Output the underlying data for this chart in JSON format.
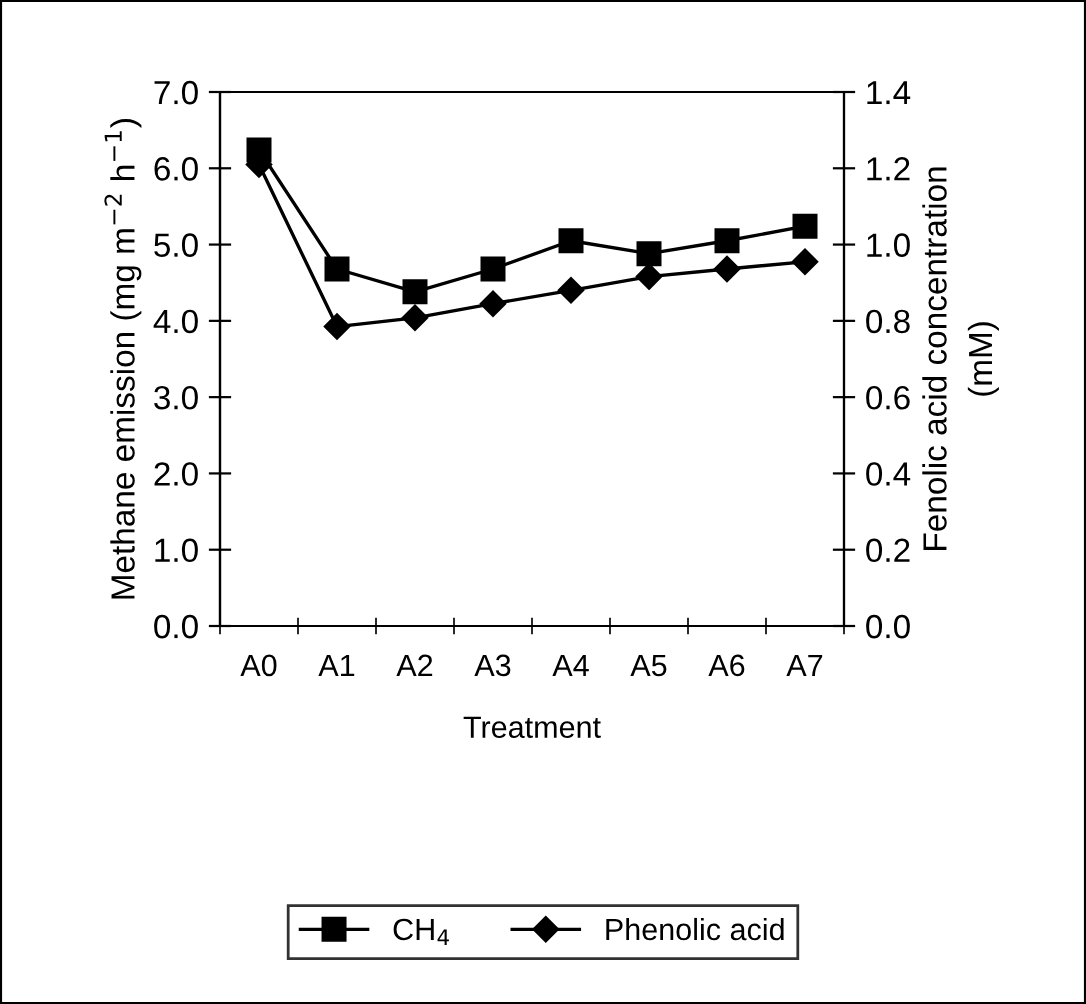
{
  "chart_data": {
    "type": "line",
    "xlabel": "Treatment",
    "ylabel": "Methane emission (mg m$^{−2}$ h$^{−1}$)",
    "y2label": "Fenolic acid concentration\n(mM)",
    "categories": [
      "A0",
      "A1",
      "A2",
      "A3",
      "A4",
      "A5",
      "A6",
      "A7"
    ],
    "series": [
      {
        "name": "CH$_{4}$",
        "color": "#000000",
        "marker": "square",
        "values": [
          6.24,
          4.68,
          4.38,
          4.68,
          5.05,
          4.88,
          5.05,
          5.24
        ]
      },
      {
        "name": "Phenolic acid",
        "color": "#000000",
        "marker": "diamond",
        "axis": "y2",
        "values": [
          1.21,
          0.785,
          0.808,
          0.845,
          0.88,
          0.916,
          0.936,
          0.955
        ]
      }
    ],
    "ylim": [
      0,
      7
    ],
    "yticks": [
      {
        "value": 0,
        "label": "0.0"
      },
      {
        "value": 1,
        "label": "1.0"
      },
      {
        "value": 2,
        "label": "2.0"
      },
      {
        "value": 3,
        "label": "3.0"
      },
      {
        "value": 4,
        "label": "4.0"
      },
      {
        "value": 5,
        "label": "5.0"
      },
      {
        "value": 6,
        "label": "6.0"
      },
      {
        "value": 7,
        "label": "7.0"
      }
    ],
    "y2lim": [
      0,
      1.4
    ],
    "y2ticks": [
      {
        "value": 0,
        "label": "0.0"
      },
      {
        "value": 0.2,
        "label": "0.2"
      },
      {
        "value": 0.4,
        "label": "0.4"
      },
      {
        "value": 0.6,
        "label": "0.6"
      },
      {
        "value": 0.8,
        "label": "0.8"
      },
      {
        "value": 1.0,
        "label": "1.0"
      },
      {
        "value": 1.2,
        "label": "1.2"
      },
      {
        "value": 1.4,
        "label": "1.4"
      }
    ],
    "grid": false,
    "legend": "bottom",
    "line_style": "solid"
  }
}
